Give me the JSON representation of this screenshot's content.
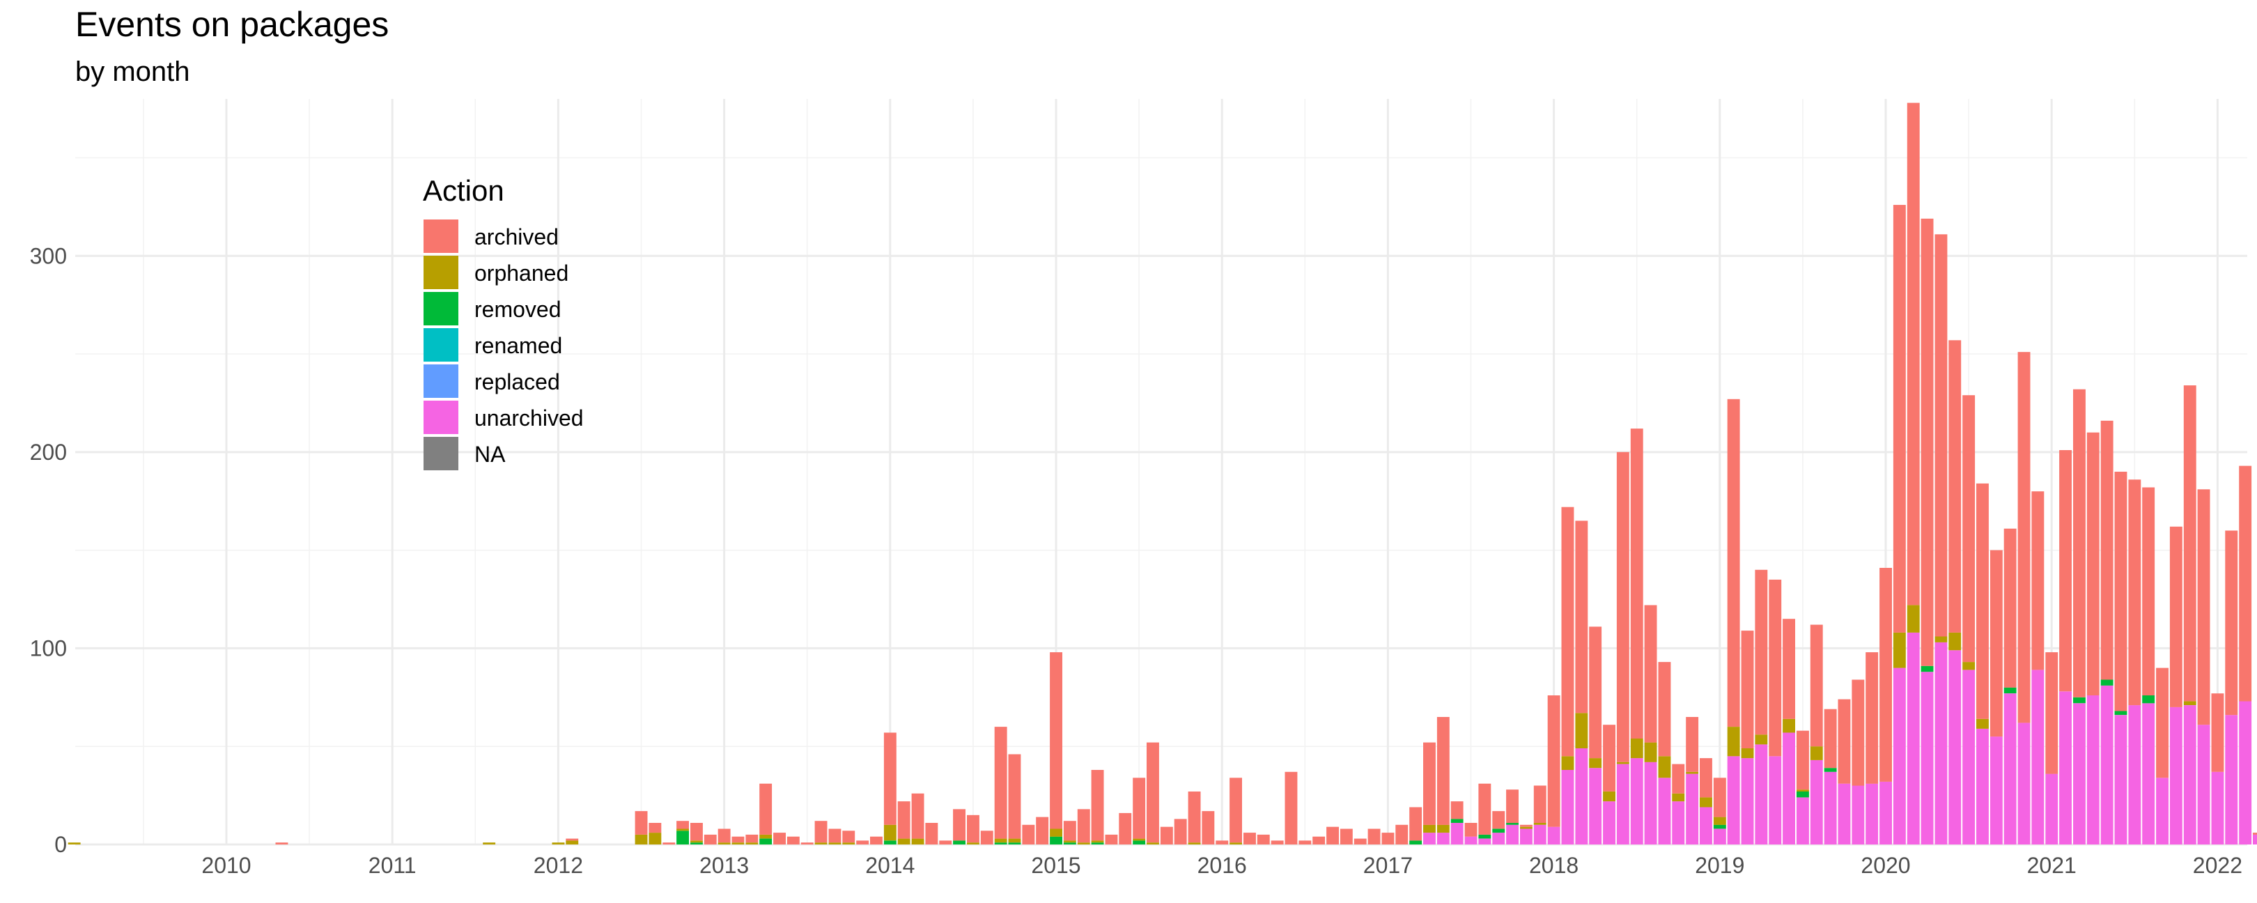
{
  "chart_data": {
    "type": "bar",
    "stacked": true,
    "title": "Events on packages",
    "subtitle": "by month",
    "xlabel": "",
    "ylabel": "",
    "ylim": [
      0,
      380
    ],
    "y_ticks": [
      0,
      100,
      200,
      300
    ],
    "x_ticks": [
      "2010",
      "2011",
      "2012",
      "2013",
      "2014",
      "2015",
      "2016",
      "2017",
      "2018",
      "2019",
      "2020",
      "2021",
      "2022"
    ],
    "grid": true,
    "legend": {
      "title": "Action",
      "position": "inside-top-left"
    },
    "series": [
      {
        "name": "archived",
        "color": "#F8766D"
      },
      {
        "name": "orphaned",
        "color": "#B79F00"
      },
      {
        "name": "removed",
        "color": "#00BA38"
      },
      {
        "name": "renamed",
        "color": "#00BFC4"
      },
      {
        "name": "replaced",
        "color": "#619CFF"
      },
      {
        "name": "unarchived",
        "color": "#F564E3"
      },
      {
        "name": "NA",
        "color": "#808080"
      }
    ],
    "months": [
      {
        "date": "2009-02",
        "orphaned": 1
      },
      {
        "date": "2010-05",
        "archived": 1
      },
      {
        "date": "2011-08",
        "orphaned": 1
      },
      {
        "date": "2012-01",
        "orphaned": 1
      },
      {
        "date": "2012-02",
        "archived": 1,
        "orphaned": 2
      },
      {
        "date": "2012-07",
        "archived": 12,
        "orphaned": 5
      },
      {
        "date": "2012-08",
        "archived": 5,
        "orphaned": 6
      },
      {
        "date": "2012-09",
        "archived": 1
      },
      {
        "date": "2012-10",
        "archived": 4,
        "orphaned": 1,
        "removed": 7
      },
      {
        "date": "2012-11",
        "archived": 9,
        "orphaned": 1,
        "removed": 1
      },
      {
        "date": "2012-12",
        "archived": 5
      },
      {
        "date": "2013-01",
        "archived": 7,
        "orphaned": 1
      },
      {
        "date": "2013-02",
        "archived": 3,
        "orphaned": 1
      },
      {
        "date": "2013-03",
        "archived": 4,
        "orphaned": 1
      },
      {
        "date": "2013-04",
        "archived": 26,
        "orphaned": 2,
        "removed": 3
      },
      {
        "date": "2013-05",
        "archived": 6
      },
      {
        "date": "2013-06",
        "archived": 4
      },
      {
        "date": "2013-07",
        "archived": 1
      },
      {
        "date": "2013-08",
        "archived": 11,
        "orphaned": 1
      },
      {
        "date": "2013-09",
        "archived": 7,
        "orphaned": 1
      },
      {
        "date": "2013-10",
        "archived": 6,
        "orphaned": 1
      },
      {
        "date": "2013-11",
        "archived": 2
      },
      {
        "date": "2013-12",
        "archived": 4
      },
      {
        "date": "2014-01",
        "archived": 47,
        "orphaned": 8,
        "removed": 2
      },
      {
        "date": "2014-02",
        "archived": 19,
        "orphaned": 3
      },
      {
        "date": "2014-03",
        "archived": 23,
        "orphaned": 3
      },
      {
        "date": "2014-04",
        "archived": 11
      },
      {
        "date": "2014-05",
        "archived": 2
      },
      {
        "date": "2014-06",
        "archived": 16,
        "removed": 2
      },
      {
        "date": "2014-07",
        "archived": 14,
        "orphaned": 1
      },
      {
        "date": "2014-08",
        "archived": 7
      },
      {
        "date": "2014-09",
        "archived": 57,
        "orphaned": 2,
        "removed": 1
      },
      {
        "date": "2014-10",
        "archived": 43,
        "orphaned": 2,
        "removed": 1
      },
      {
        "date": "2014-11",
        "archived": 10
      },
      {
        "date": "2014-12",
        "archived": 14
      },
      {
        "date": "2015-01",
        "archived": 90,
        "orphaned": 4,
        "removed": 4
      },
      {
        "date": "2015-02",
        "archived": 10,
        "orphaned": 1,
        "removed": 1
      },
      {
        "date": "2015-03",
        "archived": 17,
        "orphaned": 1
      },
      {
        "date": "2015-04",
        "archived": 36,
        "orphaned": 1,
        "removed": 1
      },
      {
        "date": "2015-05",
        "archived": 5
      },
      {
        "date": "2015-06",
        "archived": 16
      },
      {
        "date": "2015-07",
        "archived": 31,
        "orphaned": 1,
        "removed": 2
      },
      {
        "date": "2015-08",
        "archived": 51,
        "orphaned": 1
      },
      {
        "date": "2015-09",
        "archived": 9
      },
      {
        "date": "2015-10",
        "archived": 13
      },
      {
        "date": "2015-11",
        "archived": 26,
        "orphaned": 1
      },
      {
        "date": "2015-12",
        "archived": 17
      },
      {
        "date": "2016-01",
        "archived": 2
      },
      {
        "date": "2016-02",
        "archived": 33,
        "orphaned": 1
      },
      {
        "date": "2016-03",
        "archived": 6
      },
      {
        "date": "2016-04",
        "archived": 5
      },
      {
        "date": "2016-05",
        "archived": 2
      },
      {
        "date": "2016-06",
        "archived": 37
      },
      {
        "date": "2016-07",
        "archived": 2
      },
      {
        "date": "2016-08",
        "archived": 4
      },
      {
        "date": "2016-09",
        "archived": 9
      },
      {
        "date": "2016-10",
        "archived": 8
      },
      {
        "date": "2016-11",
        "archived": 3
      },
      {
        "date": "2016-12",
        "archived": 8
      },
      {
        "date": "2017-01",
        "archived": 6
      },
      {
        "date": "2017-02",
        "archived": 10
      },
      {
        "date": "2017-03",
        "archived": 17,
        "removed": 2
      },
      {
        "date": "2017-04",
        "archived": 42,
        "orphaned": 4,
        "unarchived": 6
      },
      {
        "date": "2017-05",
        "archived": 55,
        "orphaned": 4,
        "unarchived": 6
      },
      {
        "date": "2017-06",
        "archived": 9,
        "removed": 2,
        "unarchived": 11
      },
      {
        "date": "2017-07",
        "archived": 7,
        "unarchived": 4
      },
      {
        "date": "2017-08",
        "archived": 26,
        "removed": 2,
        "unarchived": 3
      },
      {
        "date": "2017-09",
        "archived": 9,
        "removed": 2,
        "unarchived": 6
      },
      {
        "date": "2017-10",
        "archived": 17,
        "removed": 1,
        "unarchived": 10
      },
      {
        "date": "2017-11",
        "archived": 1,
        "orphaned": 1,
        "unarchived": 8
      },
      {
        "date": "2017-12",
        "archived": 19,
        "orphaned": 1,
        "unarchived": 10
      },
      {
        "date": "2018-01",
        "archived": 67,
        "unarchived": 9
      },
      {
        "date": "2018-02",
        "archived": 127,
        "orphaned": 7,
        "unarchived": 38
      },
      {
        "date": "2018-03",
        "archived": 98,
        "orphaned": 18,
        "unarchived": 49
      },
      {
        "date": "2018-04",
        "archived": 67,
        "orphaned": 5,
        "unarchived": 39
      },
      {
        "date": "2018-05",
        "archived": 34,
        "orphaned": 5,
        "unarchived": 22
      },
      {
        "date": "2018-06",
        "archived": 158,
        "orphaned": 1,
        "unarchived": 41
      },
      {
        "date": "2018-07",
        "archived": 158,
        "orphaned": 10,
        "unarchived": 44
      },
      {
        "date": "2018-08",
        "archived": 70,
        "orphaned": 10,
        "unarchived": 42
      },
      {
        "date": "2018-09",
        "archived": 48,
        "orphaned": 11,
        "unarchived": 34
      },
      {
        "date": "2018-10",
        "archived": 15,
        "orphaned": 4,
        "unarchived": 22
      },
      {
        "date": "2018-11",
        "archived": 28,
        "orphaned": 1,
        "unarchived": 36
      },
      {
        "date": "2018-12",
        "archived": 20,
        "orphaned": 5,
        "unarchived": 19
      },
      {
        "date": "2019-01",
        "archived": 20,
        "orphaned": 4,
        "removed": 2,
        "unarchived": 8
      },
      {
        "date": "2019-02",
        "archived": 167,
        "orphaned": 15,
        "unarchived": 45
      },
      {
        "date": "2019-03",
        "archived": 60,
        "orphaned": 5,
        "unarchived": 44
      },
      {
        "date": "2019-04",
        "archived": 84,
        "orphaned": 5,
        "unarchived": 51
      },
      {
        "date": "2019-05",
        "archived": 90,
        "unarchived": 45
      },
      {
        "date": "2019-06",
        "archived": 51,
        "orphaned": 7,
        "unarchived": 57
      },
      {
        "date": "2019-07",
        "archived": 30,
        "orphaned": 1,
        "removed": 3,
        "unarchived": 24
      },
      {
        "date": "2019-08",
        "archived": 62,
        "orphaned": 7,
        "unarchived": 43
      },
      {
        "date": "2019-09",
        "archived": 30,
        "removed": 2,
        "unarchived": 37
      },
      {
        "date": "2019-10",
        "archived": 43,
        "unarchived": 31
      },
      {
        "date": "2019-11",
        "archived": 54,
        "unarchived": 30
      },
      {
        "date": "2019-12",
        "archived": 67,
        "unarchived": 31
      },
      {
        "date": "2020-01",
        "archived": 109,
        "unarchived": 32
      },
      {
        "date": "2020-02",
        "archived": 218,
        "orphaned": 18,
        "unarchived": 90
      },
      {
        "date": "2020-03",
        "archived": 256,
        "orphaned": 14,
        "unarchived": 108
      },
      {
        "date": "2020-04",
        "archived": 228,
        "removed": 3,
        "unarchived": 88
      },
      {
        "date": "2020-05",
        "archived": 205,
        "orphaned": 3,
        "unarchived": 103
      },
      {
        "date": "2020-06",
        "archived": 149,
        "orphaned": 9,
        "unarchived": 99
      },
      {
        "date": "2020-07",
        "archived": 136,
        "orphaned": 4,
        "unarchived": 89
      },
      {
        "date": "2020-08",
        "archived": 120,
        "orphaned": 5,
        "unarchived": 59
      },
      {
        "date": "2020-09",
        "archived": 95,
        "unarchived": 55
      },
      {
        "date": "2020-10",
        "archived": 81,
        "removed": 3,
        "unarchived": 77
      },
      {
        "date": "2020-11",
        "archived": 189,
        "unarchived": 62
      },
      {
        "date": "2020-12",
        "archived": 91,
        "unarchived": 89
      },
      {
        "date": "2021-01",
        "archived": 62,
        "unarchived": 36
      },
      {
        "date": "2021-02",
        "archived": 123,
        "unarchived": 78
      },
      {
        "date": "2021-03",
        "archived": 157,
        "removed": 3,
        "unarchived": 72
      },
      {
        "date": "2021-04",
        "archived": 134,
        "unarchived": 76
      },
      {
        "date": "2021-05",
        "archived": 132,
        "removed": 3,
        "unarchived": 81
      },
      {
        "date": "2021-06",
        "archived": 122,
        "removed": 2,
        "unarchived": 66
      },
      {
        "date": "2021-07",
        "archived": 115,
        "unarchived": 71
      },
      {
        "date": "2021-08",
        "archived": 106,
        "removed": 4,
        "unarchived": 72
      },
      {
        "date": "2021-09",
        "archived": 56,
        "unarchived": 34
      },
      {
        "date": "2021-10",
        "archived": 92,
        "unarchived": 70
      },
      {
        "date": "2021-11",
        "archived": 161,
        "orphaned": 2,
        "unarchived": 71
      },
      {
        "date": "2021-12",
        "archived": 120,
        "unarchived": 61
      },
      {
        "date": "2022-01",
        "archived": 40,
        "unarchived": 37
      },
      {
        "date": "2022-02",
        "archived": 94,
        "unarchived": 66
      },
      {
        "date": "2022-03",
        "archived": 120,
        "unarchived": 73
      },
      {
        "date": "2022-04",
        "archived": 1,
        "unarchived": 5
      }
    ]
  }
}
